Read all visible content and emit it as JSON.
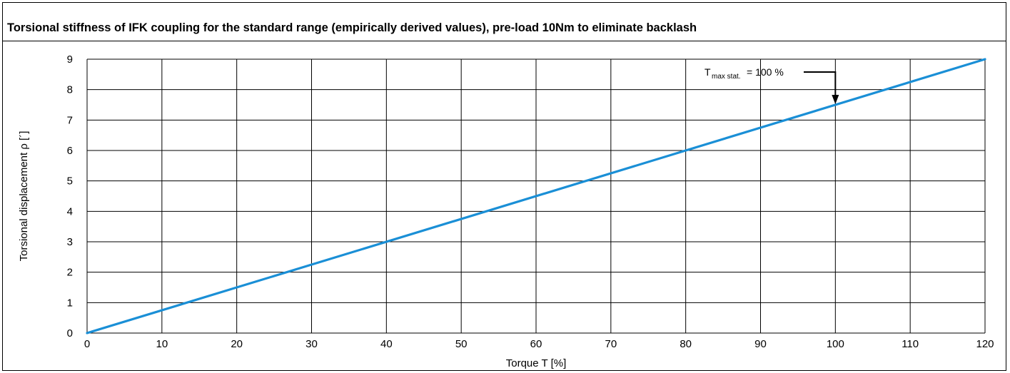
{
  "chart_data": {
    "type": "line",
    "title": "Torsional stiffness of IFK coupling for the standard range (empirically derived values), pre-load 10Nm to eliminate backlash",
    "xlabel": "Torque T [%]",
    "ylabel": "Torsional displacement ρ [´]",
    "xlim": [
      0,
      120
    ],
    "ylim": [
      0,
      9
    ],
    "x_ticks": [
      "0",
      "10",
      "20",
      "30",
      "40",
      "50",
      "60",
      "70",
      "80",
      "90",
      "100",
      "110",
      "120"
    ],
    "y_ticks": [
      "0",
      "1",
      "2",
      "3",
      "4",
      "5",
      "6",
      "7",
      "8",
      "9"
    ],
    "grid": true,
    "series": [
      {
        "color": "#1a8fd6",
        "x": [
          0,
          120
        ],
        "y": [
          0,
          9
        ]
      }
    ],
    "annotation": {
      "text_main": "T",
      "text_sub": "max stat.",
      "text_rest": "= 100 %",
      "points_to_x": 100,
      "points_to_y": 7.5
    }
  },
  "colors": {
    "line": "#1a8fd6",
    "grid": "#000000",
    "text": "#000000"
  }
}
